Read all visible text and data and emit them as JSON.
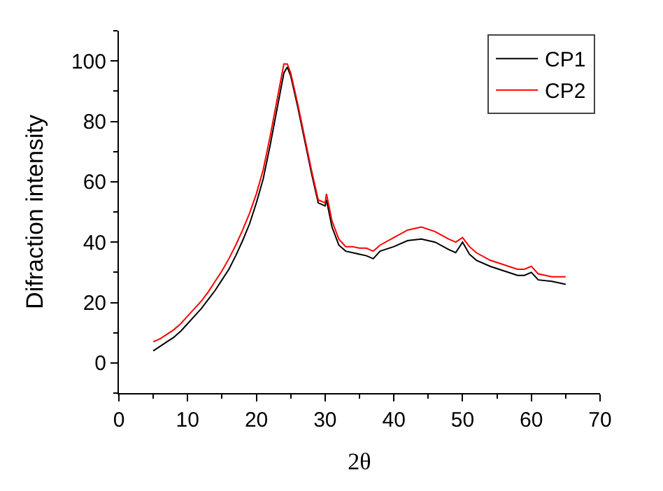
{
  "chart_data": {
    "type": "line",
    "xlabel": "2θ",
    "ylabel": "Difraction intensity",
    "xlim": [
      0,
      70
    ],
    "xticks": [
      0,
      10,
      20,
      30,
      40,
      50,
      60,
      70
    ],
    "ylim": [
      -10,
      110
    ],
    "yticks": [
      0,
      20,
      40,
      60,
      80,
      100
    ],
    "legend": "top right",
    "marker": "none",
    "line_style": "solid",
    "x": [
      5,
      6,
      7,
      8,
      9,
      10,
      11,
      12,
      13,
      14,
      15,
      16,
      17,
      18,
      19,
      20,
      21,
      22,
      23,
      24,
      24.5,
      25,
      26,
      27,
      28,
      29,
      30,
      30.2,
      31,
      32,
      33,
      34,
      35,
      36,
      37,
      38,
      40,
      42,
      44,
      46,
      48,
      49,
      50,
      51,
      52,
      54,
      56,
      58,
      59,
      60,
      61,
      63,
      65
    ],
    "series": [
      {
        "name": "CP1",
        "color": "#000000",
        "values": [
          4,
          5.5,
          7,
          8.5,
          10.5,
          13,
          15.5,
          18,
          21,
          24,
          27.5,
          31,
          35.5,
          40.5,
          46,
          53,
          61,
          72,
          84,
          96,
          98,
          95,
          85,
          74,
          63,
          53,
          52,
          54,
          45,
          39,
          37,
          36.5,
          36,
          35.5,
          34.5,
          37,
          38.5,
          40.5,
          41,
          40,
          37.5,
          36.5,
          40,
          36,
          34,
          32,
          30.5,
          29,
          29,
          30,
          27.5,
          27,
          26
        ]
      },
      {
        "name": "CP2",
        "color": "#ff0000",
        "values": [
          7,
          8,
          9.5,
          11,
          13,
          15.5,
          18,
          20.5,
          23.5,
          27,
          30.5,
          34.5,
          39,
          44,
          49.5,
          56,
          64,
          75,
          87,
          99,
          99,
          96,
          86,
          75,
          64,
          54,
          53,
          56,
          47,
          41,
          38.5,
          38.5,
          38,
          38,
          37,
          39,
          41.5,
          44,
          45,
          43.5,
          41,
          40,
          41.5,
          38.5,
          36.5,
          34,
          32.5,
          31,
          31,
          32,
          29.5,
          28.5,
          28.5
        ]
      }
    ]
  }
}
